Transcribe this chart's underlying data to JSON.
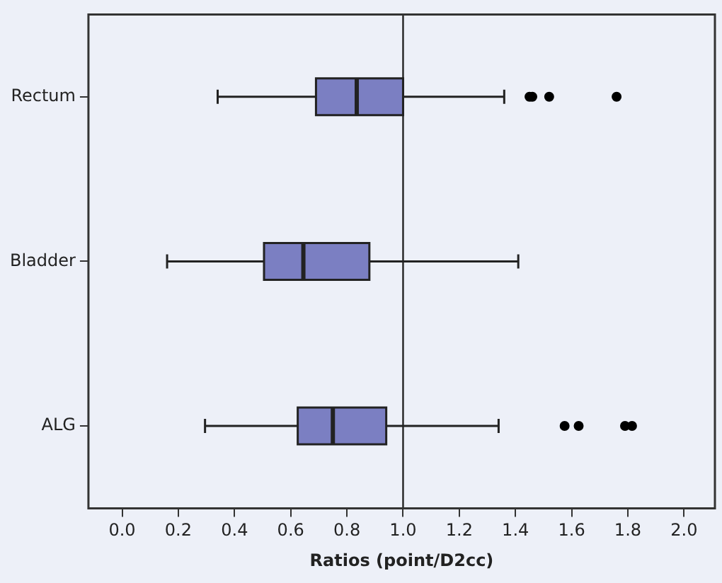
{
  "chart_data": {
    "type": "box",
    "orientation": "horizontal",
    "xlabel": "Ratios (point/D2cc)",
    "categories": [
      "Rectum",
      "Bladder",
      "ALG"
    ],
    "color": "#7b7fc2",
    "boxes": [
      {
        "low": 0.34,
        "q1": 0.69,
        "median": 0.835,
        "q3": 1.0,
        "high": 1.36,
        "outliers": [
          1.45,
          1.46,
          1.52,
          1.76
        ]
      },
      {
        "low": 0.16,
        "q1": 0.505,
        "median": 0.645,
        "q3": 0.88,
        "high": 1.41
      },
      {
        "low": 0.295,
        "q1": 0.625,
        "median": 0.75,
        "q3": 0.94,
        "high": 1.34,
        "outliers": [
          1.575,
          1.625,
          1.79,
          1.815
        ]
      }
    ],
    "xlim": [
      -0.12,
      2.11
    ],
    "xticks": [
      {
        "value": 0,
        "label": "0.0"
      },
      {
        "value": 0.2,
        "label": "0.2"
      },
      {
        "value": 0.4,
        "label": "0.4"
      },
      {
        "value": 0.6,
        "label": "0.6"
      },
      {
        "value": 0.8,
        "label": "0.8"
      },
      {
        "value": 1,
        "label": "1.0"
      },
      {
        "value": 1.2,
        "label": "1.2"
      },
      {
        "value": 1.4,
        "label": "1.4"
      },
      {
        "value": 1.6,
        "label": "1.6"
      },
      {
        "value": 1.8,
        "label": "1.8"
      },
      {
        "value": 2,
        "label": "2.0"
      }
    ],
    "ref_lines": [
      {
        "axis": "x",
        "value": 1.0,
        "color": "#222222"
      }
    ],
    "grid": false,
    "legend": false
  }
}
